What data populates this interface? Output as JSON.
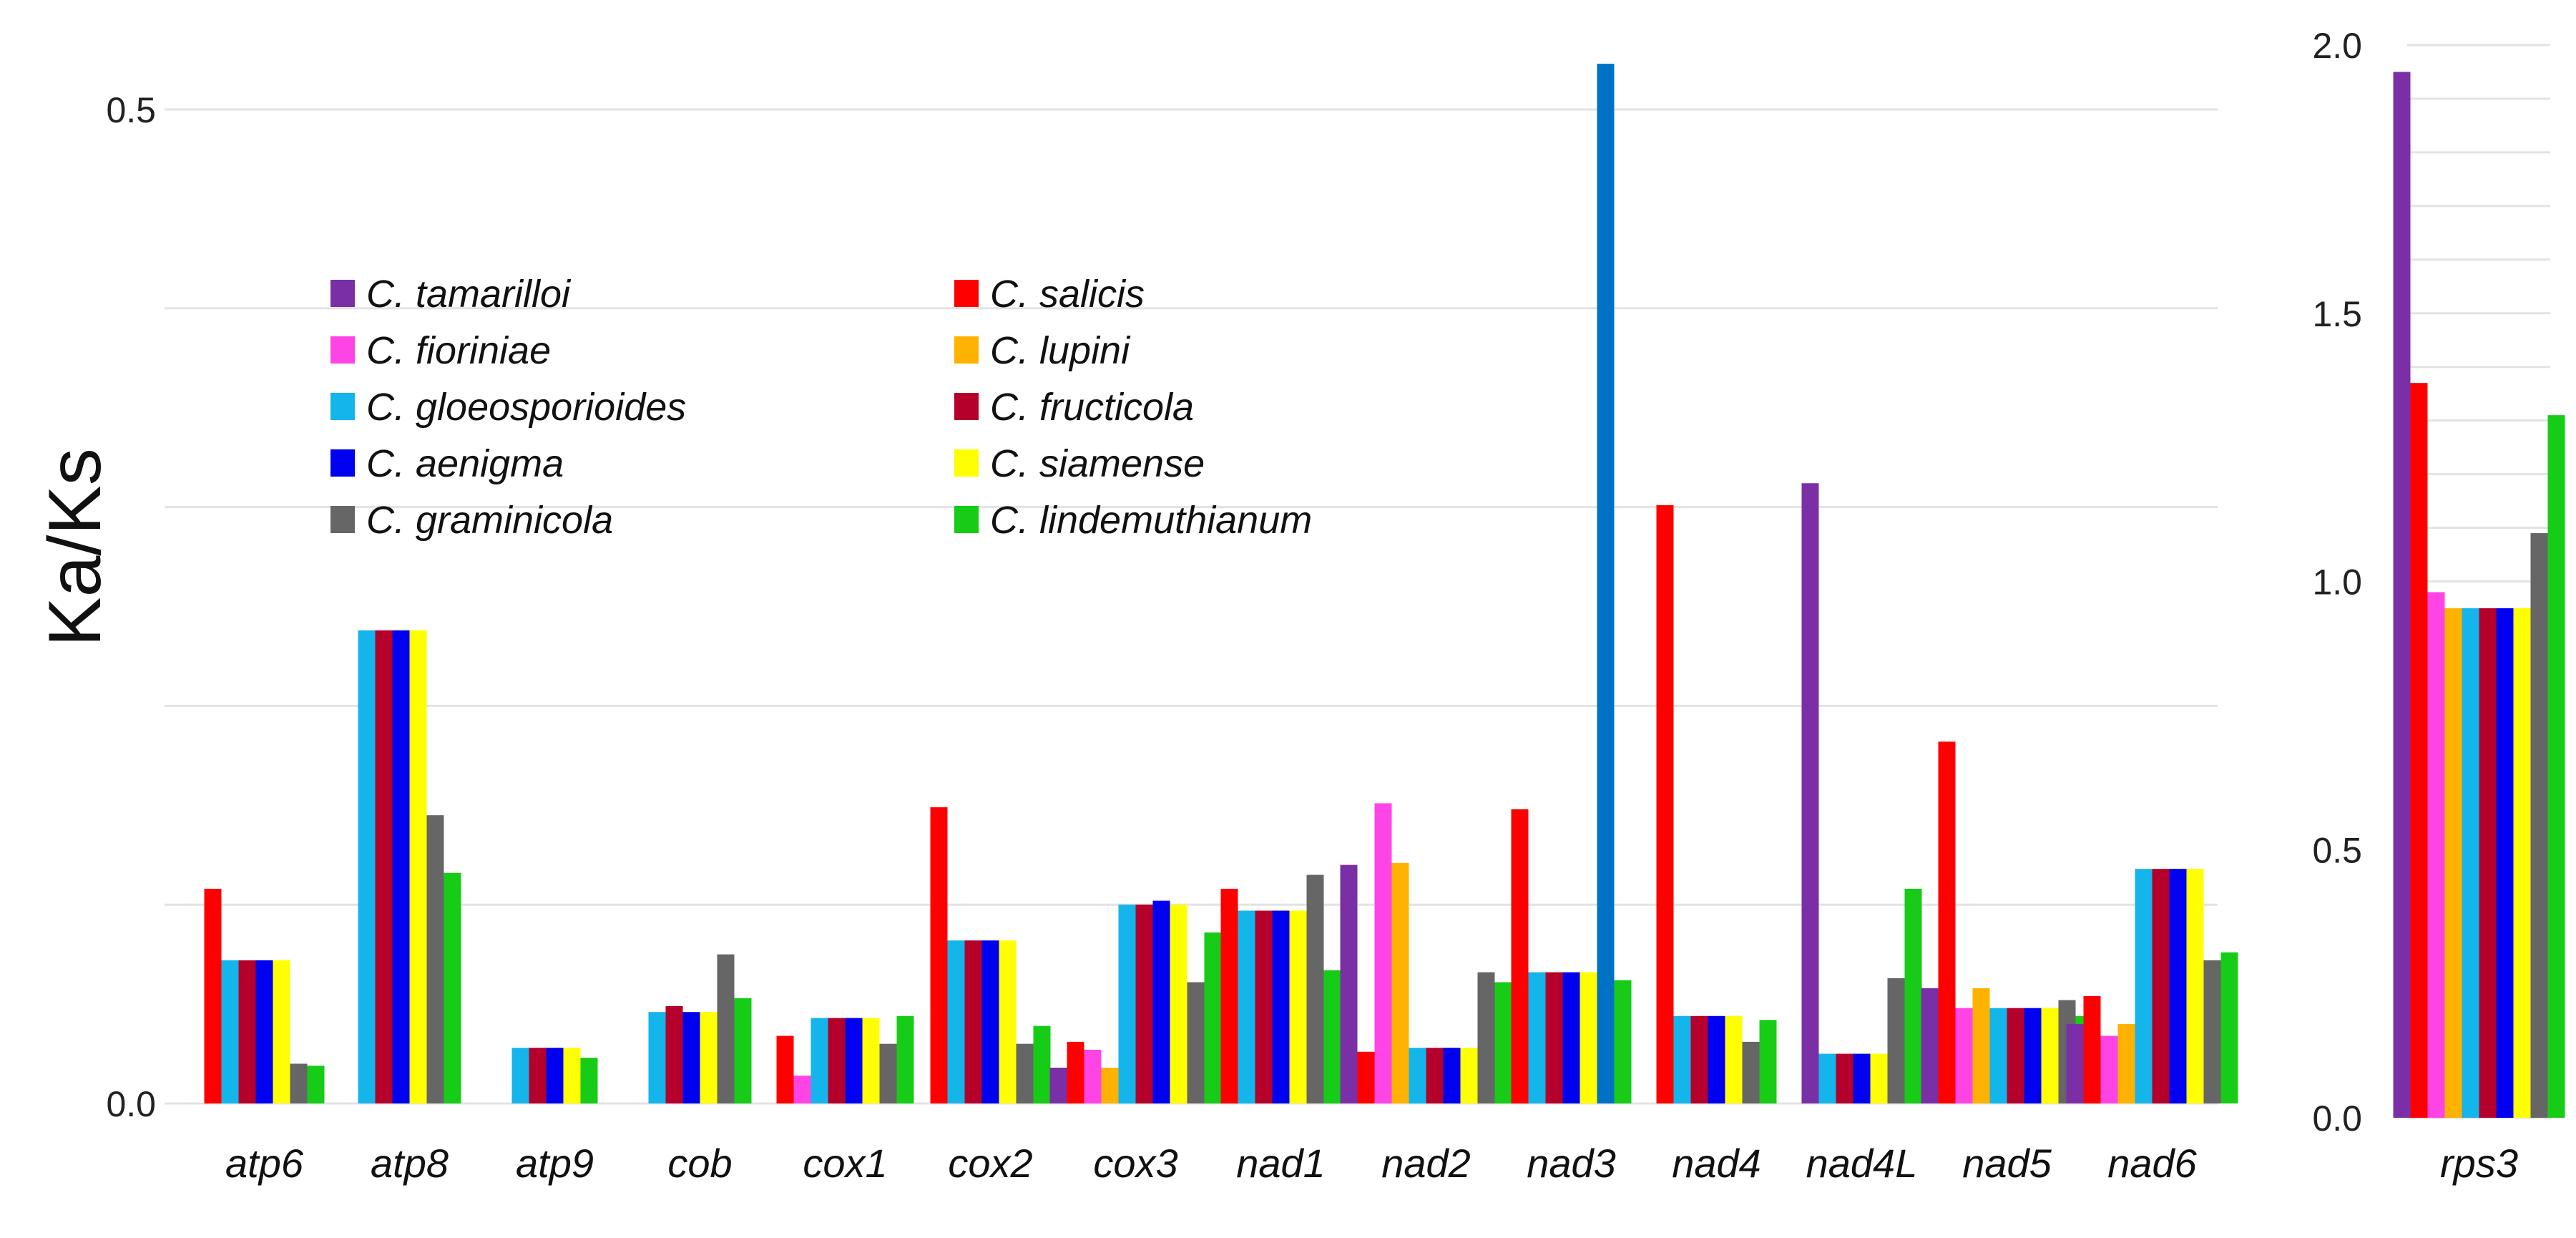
{
  "chart_data": {
    "type": "bar",
    "ylabel": "Ka/Ks",
    "series": [
      {
        "name": "C. tamarilloi",
        "color": "#7B2FA6"
      },
      {
        "name": "C. salicis",
        "color": "#FF0000"
      },
      {
        "name": "C. fioriniae",
        "color": "#FF44E6"
      },
      {
        "name": "C. lupini",
        "color": "#FFB300"
      },
      {
        "name": "C. gloeosporioides",
        "color": "#13B5EA"
      },
      {
        "name": "C. fructicola",
        "color": "#B4002A"
      },
      {
        "name": "C. aenigma",
        "color": "#0000F0"
      },
      {
        "name": "C. siamense",
        "color": "#FFFF00"
      },
      {
        "name": "C. graminicola",
        "color": "#666666"
      },
      {
        "name": "C. lindemuthianum",
        "color": "#16CC16"
      }
    ],
    "main_panel": {
      "ylim": [
        0,
        0.5
      ],
      "yticks": [
        "0.0",
        "0.5"
      ],
      "gridlines": [
        0,
        0.1,
        0.2,
        0.3,
        0.4,
        0.5
      ],
      "categories": [
        "atp6",
        "atp8",
        "atp9",
        "cob",
        "cox1",
        "cox2",
        "cox3",
        "nad1",
        "nad2",
        "nad3",
        "nad4",
        "nad4L",
        "nad5",
        "nad6"
      ],
      "bars": [
        [
          [
            "C. salicis",
            0.108
          ],
          [
            "C. gloeosporioides",
            0.072
          ],
          [
            "C. fructicola",
            0.072
          ],
          [
            "C. aenigma",
            0.072
          ],
          [
            "C. siamense",
            0.072
          ],
          [
            "C. graminicola",
            0.02
          ],
          [
            "C. lindemuthianum",
            0.019
          ]
        ],
        [
          [
            "C. gloeosporioides",
            0.238
          ],
          [
            "C. fructicola",
            0.238
          ],
          [
            "C. aenigma",
            0.238
          ],
          [
            "C. siamense",
            0.238
          ],
          [
            "C. graminicola",
            0.145
          ],
          [
            "C. lindemuthianum",
            0.116
          ]
        ],
        [
          [
            "C. gloeosporioides",
            0.028
          ],
          [
            "C. fructicola",
            0.028
          ],
          [
            "C. aenigma",
            0.028
          ],
          [
            "C. siamense",
            0.028
          ],
          [
            "C. lindemuthianum",
            0.023
          ]
        ],
        [
          [
            "C. gloeosporioides",
            0.046
          ],
          [
            "C. fructicola",
            0.049
          ],
          [
            "C. aenigma",
            0.046
          ],
          [
            "C. siamense",
            0.046
          ],
          [
            "C. graminicola",
            0.075
          ],
          [
            "C. lindemuthianum",
            0.053
          ]
        ],
        [
          [
            "C. salicis",
            0.034
          ],
          [
            "C. fioriniae",
            0.014
          ],
          [
            "C. gloeosporioides",
            0.043
          ],
          [
            "C. fructicola",
            0.043
          ],
          [
            "C. aenigma",
            0.043
          ],
          [
            "C. siamense",
            0.043
          ],
          [
            "C. graminicola",
            0.03
          ],
          [
            "C. lindemuthianum",
            0.044
          ]
        ],
        [
          [
            "C. salicis",
            0.149
          ],
          [
            "C. gloeosporioides",
            0.082
          ],
          [
            "C. fructicola",
            0.082
          ],
          [
            "C. aenigma",
            0.082
          ],
          [
            "C. siamense",
            0.082
          ],
          [
            "C. graminicola",
            0.03
          ],
          [
            "C. lindemuthianum",
            0.039
          ]
        ],
        [
          [
            "C. tamarilloi",
            0.018
          ],
          [
            "C. salicis",
            0.031
          ],
          [
            "C. fioriniae",
            0.027
          ],
          [
            "C. lupini",
            0.018
          ],
          [
            "C. gloeosporioides",
            0.1
          ],
          [
            "C. fructicola",
            0.1
          ],
          [
            "C. aenigma",
            0.102
          ],
          [
            "C. siamense",
            0.1
          ],
          [
            "C. graminicola",
            0.061
          ],
          [
            "C. lindemuthianum",
            0.086
          ]
        ],
        [
          [
            "C. salicis",
            0.108
          ],
          [
            "C. gloeosporioides",
            0.097
          ],
          [
            "C. fructicola",
            0.097
          ],
          [
            "C. aenigma",
            0.097
          ],
          [
            "C. siamense",
            0.097
          ],
          [
            "C. graminicola",
            0.115
          ],
          [
            "C. lindemuthianum",
            0.067
          ]
        ],
        [
          [
            "C. tamarilloi",
            0.12
          ],
          [
            "C. salicis",
            0.026
          ],
          [
            "C. fioriniae",
            0.151
          ],
          [
            "C. lupini",
            0.121
          ],
          [
            "C. gloeosporioides",
            0.028
          ],
          [
            "C. fructicola",
            0.028
          ],
          [
            "C. aenigma",
            0.028
          ],
          [
            "C. siamense",
            0.028
          ],
          [
            "C. graminicola",
            0.066
          ],
          [
            "C. lindemuthianum",
            0.061
          ]
        ],
        [
          [
            "C. salicis",
            0.148
          ],
          [
            "C. gloeosporioides",
            0.066
          ],
          [
            "C. fructicola",
            0.066
          ],
          [
            "C. aenigma",
            0.066
          ],
          [
            "C. siamense",
            0.066
          ],
          [
            "Unlabeled (blue)",
            0.523
          ],
          [
            "C. lindemuthianum",
            0.062
          ]
        ],
        [
          [
            "C. salicis",
            0.301
          ],
          [
            "C. gloeosporioides",
            0.044
          ],
          [
            "C. fructicola",
            0.044
          ],
          [
            "C. aenigma",
            0.044
          ],
          [
            "C. siamense",
            0.044
          ],
          [
            "C. graminicola",
            0.031
          ],
          [
            "C. lindemuthianum",
            0.042
          ]
        ],
        [
          [
            "C. tamarilloi",
            0.312
          ],
          [
            "C. gloeosporioides",
            0.025
          ],
          [
            "C. fructicola",
            0.025
          ],
          [
            "C. aenigma",
            0.025
          ],
          [
            "C. siamense",
            0.025
          ],
          [
            "C. graminicola",
            0.063
          ],
          [
            "C. lindemuthianum",
            0.108
          ]
        ],
        [
          [
            "C. tamarilloi",
            0.058
          ],
          [
            "C. salicis",
            0.182
          ],
          [
            "C. fioriniae",
            0.048
          ],
          [
            "C. lupini",
            0.058
          ],
          [
            "C. gloeosporioides",
            0.048
          ],
          [
            "C. fructicola",
            0.048
          ],
          [
            "C. aenigma",
            0.048
          ],
          [
            "C. siamense",
            0.048
          ],
          [
            "C. graminicola",
            0.052
          ],
          [
            "C. lindemuthianum",
            0.044
          ]
        ],
        [
          [
            "C. tamarilloi",
            0.04
          ],
          [
            "C. salicis",
            0.054
          ],
          [
            "C. fioriniae",
            0.034
          ],
          [
            "C. lupini",
            0.04
          ],
          [
            "C. gloeosporioides",
            0.118
          ],
          [
            "C. fructicola",
            0.118
          ],
          [
            "C. aenigma",
            0.118
          ],
          [
            "C. siamense",
            0.118
          ],
          [
            "C. graminicola",
            0.072
          ],
          [
            "C. lindemuthianum",
            0.076
          ]
        ]
      ]
    },
    "side_panel": {
      "ylim": [
        0,
        2.0
      ],
      "yticks": [
        "0.0",
        "0.5",
        "1.0",
        "1.5",
        "2.0"
      ],
      "gridlines": [
        0,
        0.1,
        0.2,
        0.3,
        0.4,
        0.5,
        0.6,
        0.7,
        0.8,
        0.9,
        1.0,
        1.1,
        1.2,
        1.3,
        1.4,
        1.5,
        1.6,
        1.7,
        1.8,
        1.9,
        2.0
      ],
      "categories": [
        "rps3"
      ],
      "bars": [
        [
          [
            "C. tamarilloi",
            1.95
          ],
          [
            "C. salicis",
            1.37
          ],
          [
            "C. fioriniae",
            0.98
          ],
          [
            "C. lupini",
            0.95
          ],
          [
            "C. gloeosporioides",
            0.95
          ],
          [
            "C. fructicola",
            0.95
          ],
          [
            "C. aenigma",
            0.95
          ],
          [
            "C. siamense",
            0.95
          ],
          [
            "C. graminicola",
            1.09
          ],
          [
            "C. lindemuthianum",
            1.31
          ]
        ]
      ]
    },
    "legend_placement": "top-left, two columns"
  }
}
